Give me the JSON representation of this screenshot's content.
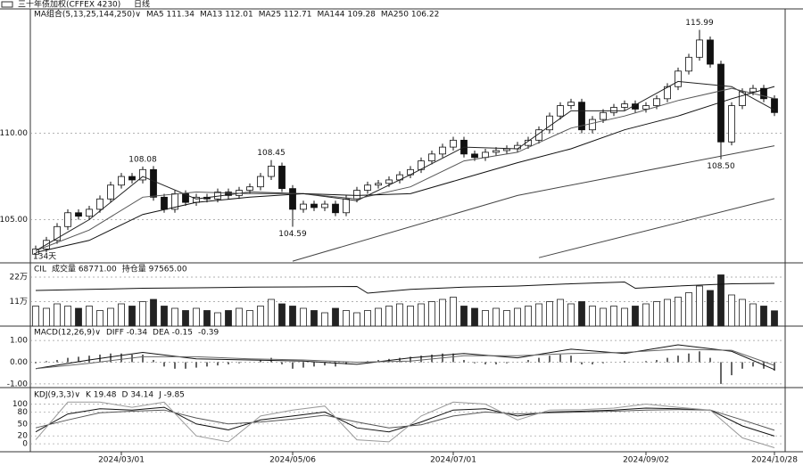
{
  "header": {
    "title": "三十年债加权(CFFEX 4230)",
    "period": "日线"
  },
  "chart_data": [
    {
      "type": "candlestick",
      "ylim": [
        102.5,
        117.2
      ],
      "xlim": [
        -0.5,
        69.5
      ],
      "yticks": [
        {
          "value": 105,
          "label": "105.00"
        },
        {
          "value": 110,
          "label": "110.00"
        }
      ],
      "legend": [
        "MA组合(5,13,25,144,250)∨",
        "MA5 111.34",
        "MA13 112.01",
        "MA25 112.71",
        "MA144 109.28",
        "MA250 106.22"
      ],
      "note": "134天",
      "open": [
        103.0,
        103.3,
        103.8,
        104.6,
        105.4,
        105.2,
        105.6,
        106.2,
        107.0,
        107.5,
        107.3,
        107.9,
        106.3,
        105.6,
        106.5,
        106.0,
        106.3,
        106.2,
        106.6,
        106.4,
        106.7,
        106.9,
        107.5,
        108.1,
        106.8,
        105.6,
        105.9,
        105.7,
        105.9,
        105.4,
        106.2,
        106.7,
        107.0,
        107.1,
        107.3,
        107.6,
        107.9,
        108.4,
        108.8,
        109.2,
        109.6,
        108.8,
        108.6,
        108.9,
        109.0,
        109.1,
        109.3,
        109.6,
        110.2,
        111.0,
        111.6,
        111.8,
        110.2,
        110.8,
        111.2,
        111.5,
        111.7,
        111.4,
        111.6,
        112.0,
        112.7,
        113.6,
        114.4,
        115.4,
        114.0,
        109.5,
        111.6,
        112.4,
        112.6,
        112.0
      ],
      "high": [
        103.5,
        104.0,
        104.8,
        105.6,
        105.6,
        105.8,
        106.4,
        107.2,
        107.7,
        107.7,
        108.08,
        108.1,
        106.5,
        106.7,
        106.7,
        106.5,
        106.5,
        106.8,
        106.8,
        106.9,
        107.1,
        107.7,
        108.45,
        108.3,
        107.0,
        106.1,
        106.1,
        106.1,
        106.1,
        106.4,
        106.9,
        107.2,
        107.3,
        107.5,
        107.8,
        108.1,
        108.6,
        109.0,
        109.4,
        109.8,
        109.8,
        109.0,
        109.1,
        109.2,
        109.3,
        109.5,
        109.8,
        110.4,
        111.2,
        111.8,
        112.0,
        112.0,
        111.0,
        111.4,
        111.7,
        111.9,
        111.9,
        111.8,
        112.2,
        112.9,
        113.8,
        114.6,
        115.99,
        115.6,
        114.2,
        111.8,
        112.6,
        112.8,
        112.8,
        112.2
      ],
      "low": [
        102.8,
        103.1,
        103.6,
        104.4,
        105.0,
        105.0,
        105.4,
        106.0,
        106.8,
        107.1,
        107.1,
        106.1,
        105.4,
        105.4,
        105.8,
        105.8,
        106.0,
        106.0,
        106.2,
        106.2,
        106.5,
        106.7,
        107.3,
        106.6,
        104.59,
        105.4,
        105.5,
        105.5,
        105.2,
        105.2,
        106.0,
        106.5,
        106.8,
        106.9,
        107.1,
        107.4,
        107.7,
        108.2,
        108.6,
        109.0,
        108.6,
        108.4,
        108.4,
        108.7,
        108.8,
        108.9,
        109.1,
        109.4,
        110.0,
        110.8,
        111.4,
        110.0,
        110.0,
        110.6,
        111.0,
        111.3,
        111.2,
        111.2,
        111.4,
        111.8,
        112.5,
        113.4,
        114.2,
        113.8,
        108.5,
        109.3,
        111.4,
        112.2,
        111.8,
        111.0
      ],
      "close": [
        103.3,
        103.8,
        104.6,
        105.4,
        105.2,
        105.6,
        106.2,
        107.0,
        107.5,
        107.3,
        107.9,
        106.3,
        105.6,
        106.5,
        106.0,
        106.3,
        106.2,
        106.6,
        106.4,
        106.7,
        106.9,
        107.5,
        108.1,
        106.8,
        105.6,
        105.9,
        105.7,
        105.9,
        105.4,
        106.2,
        106.7,
        107.0,
        107.1,
        107.3,
        107.6,
        107.9,
        108.4,
        108.8,
        109.2,
        109.6,
        108.8,
        108.6,
        108.9,
        109.0,
        109.1,
        109.3,
        109.6,
        110.2,
        111.0,
        111.6,
        111.8,
        110.2,
        110.8,
        111.2,
        111.5,
        111.7,
        111.4,
        111.6,
        112.0,
        112.7,
        113.6,
        114.4,
        115.4,
        114.0,
        109.5,
        111.6,
        112.4,
        112.6,
        112.0,
        111.2
      ],
      "series": [
        {
          "color": "#222222",
          "x": [
            0,
            5,
            10,
            15,
            20,
            25,
            30,
            35,
            40,
            45,
            50,
            55,
            60,
            65,
            69
          ],
          "values": [
            103.2,
            105.0,
            107.5,
            106.2,
            106.6,
            106.5,
            106.1,
            107.6,
            109.2,
            109.1,
            111.3,
            111.3,
            113.0,
            112.7,
            111.34
          ]
        },
        {
          "color": "#555555",
          "x": [
            0,
            5,
            10,
            15,
            20,
            25,
            30,
            35,
            40,
            45,
            50,
            55,
            60,
            65,
            69
          ],
          "values": [
            103.2,
            104.4,
            106.3,
            106.6,
            106.5,
            106.5,
            106.2,
            106.9,
            108.4,
            108.9,
            110.3,
            111.0,
            111.9,
            112.6,
            112.01
          ]
        },
        {
          "color": "#111111",
          "x": [
            0,
            5,
            10,
            15,
            20,
            25,
            30,
            35,
            40,
            45,
            50,
            55,
            60,
            65,
            69
          ],
          "values": [
            103.1,
            103.8,
            105.3,
            106.0,
            106.3,
            106.5,
            106.4,
            106.5,
            107.4,
            108.3,
            109.1,
            110.2,
            111.0,
            112.0,
            112.71
          ]
        },
        {
          "color": "#444444",
          "x": [
            24,
            45,
            69
          ],
          "values": [
            102.6,
            106.4,
            109.28
          ]
        },
        {
          "color": "#444444",
          "x": [
            47,
            69
          ],
          "values": [
            102.8,
            106.22
          ]
        }
      ],
      "annotations": [
        {
          "x": 10,
          "y": 108.08,
          "label": "108.08"
        },
        {
          "x": 22,
          "y": 108.45,
          "label": "108.45"
        },
        {
          "x": 24,
          "y": 104.59,
          "label": "104.59"
        },
        {
          "x": 62,
          "y": 115.99,
          "label": "115.99"
        },
        {
          "x": 64,
          "y": 108.5,
          "label": "108.50"
        }
      ]
    },
    {
      "type": "volume",
      "ylim": [
        0,
        28
      ],
      "yticks": [
        {
          "value": 11,
          "label": "11万"
        },
        {
          "value": 22,
          "label": "22万"
        }
      ],
      "legend": [
        "CIL",
        "成交量 68771.00",
        "持仓量 97565.00"
      ],
      "values": [
        9,
        8,
        10,
        9,
        8,
        9,
        7,
        8,
        10,
        9,
        11,
        12,
        9,
        8,
        7,
        8,
        7,
        6,
        7,
        8,
        7,
        9,
        12,
        10,
        9,
        8,
        7,
        6,
        8,
        7,
        6,
        7,
        8,
        9,
        10,
        9,
        10,
        11,
        12,
        13,
        9,
        8,
        7,
        8,
        7,
        8,
        9,
        10,
        11,
        12,
        10,
        11,
        9,
        8,
        9,
        8,
        9,
        10,
        11,
        12,
        13,
        15,
        18,
        16,
        23,
        14,
        12,
        10,
        9,
        6.88
      ],
      "series": [
        {
          "color": "#111111",
          "x": [
            0,
            5,
            10,
            15,
            20,
            25,
            30,
            31,
            35,
            40,
            45,
            50,
            55,
            56,
            60,
            65,
            69
          ],
          "values": [
            16.0,
            16.5,
            17.0,
            17.2,
            17.5,
            17.6,
            17.8,
            14.8,
            16.5,
            17.5,
            18.0,
            19.0,
            19.8,
            17.0,
            18.0,
            19.0,
            19.2
          ]
        }
      ]
    },
    {
      "type": "macd",
      "ylim": [
        -1.17,
        1.62
      ],
      "yticks": [
        {
          "value": 1,
          "label": "1.00"
        },
        {
          "value": 0,
          "label": "0.00"
        },
        {
          "value": -1,
          "label": "-1.00"
        }
      ],
      "legend": [
        "MACD(12,26,9)∨",
        "DIFF -0.34",
        "DEA -0.15",
        "-0.39"
      ],
      "values": [
        -0.05,
        0.05,
        0.1,
        0.2,
        0.25,
        0.3,
        0.35,
        0.4,
        0.4,
        0.35,
        0.35,
        0.1,
        -0.2,
        -0.3,
        -0.3,
        -0.25,
        -0.2,
        -0.15,
        -0.1,
        -0.05,
        0.0,
        0.1,
        0.2,
        -0.1,
        -0.3,
        -0.25,
        -0.2,
        -0.15,
        -0.2,
        -0.1,
        0.0,
        0.05,
        0.1,
        0.15,
        0.2,
        0.25,
        0.3,
        0.35,
        0.4,
        0.4,
        0.1,
        -0.05,
        -0.1,
        -0.1,
        -0.05,
        0.0,
        0.1,
        0.2,
        0.3,
        0.35,
        0.3,
        -0.1,
        -0.1,
        -0.05,
        0.0,
        0.05,
        0.0,
        0.05,
        0.1,
        0.2,
        0.3,
        0.4,
        0.5,
        0.2,
        -1.0,
        -0.6,
        -0.3,
        -0.2,
        -0.3,
        -0.39
      ],
      "series": [
        {
          "color": "#111111",
          "x": [
            0,
            5,
            10,
            15,
            20,
            25,
            30,
            35,
            40,
            45,
            50,
            55,
            60,
            65,
            69
          ],
          "values": [
            -0.3,
            0.1,
            0.45,
            0.15,
            0.1,
            0.05,
            -0.1,
            0.2,
            0.4,
            0.2,
            0.6,
            0.4,
            0.8,
            0.5,
            -0.34
          ]
        },
        {
          "color": "#666666",
          "x": [
            0,
            5,
            10,
            15,
            20,
            25,
            30,
            35,
            40,
            45,
            50,
            55,
            60,
            65,
            69
          ],
          "values": [
            -0.3,
            -0.05,
            0.25,
            0.25,
            0.15,
            0.1,
            0.0,
            0.05,
            0.3,
            0.3,
            0.4,
            0.45,
            0.6,
            0.55,
            -0.15
          ]
        }
      ]
    },
    {
      "type": "kdj",
      "ylim": [
        -20,
        137
      ],
      "yticks": [
        100,
        80,
        50,
        20,
        0
      ],
      "legend": [
        "KDJ(9,3,3)∨",
        "K 19.48",
        "D 34.14",
        "J -9.85"
      ],
      "xticks": [
        {
          "value": 8,
          "label": "2024/03/01"
        },
        {
          "value": 24,
          "label": "2024/05/06"
        },
        {
          "value": 39,
          "label": "2024/07/01"
        },
        {
          "value": 57,
          "label": "2024/09/02"
        },
        {
          "value": 69,
          "label": "2024/10/28"
        }
      ],
      "series": [
        {
          "color": "#111111",
          "x": [
            0,
            3,
            6,
            9,
            12,
            15,
            18,
            21,
            24,
            27,
            30,
            33,
            36,
            39,
            42,
            45,
            48,
            51,
            54,
            57,
            60,
            63,
            66,
            69
          ],
          "values": [
            30,
            75,
            88,
            85,
            92,
            50,
            35,
            60,
            70,
            80,
            40,
            30,
            55,
            85,
            88,
            70,
            80,
            82,
            85,
            90,
            88,
            85,
            45,
            19.48
          ]
        },
        {
          "color": "#555555",
          "x": [
            0,
            3,
            6,
            9,
            12,
            15,
            18,
            21,
            24,
            27,
            30,
            33,
            36,
            39,
            42,
            45,
            48,
            51,
            54,
            57,
            60,
            63,
            66,
            69
          ],
          "values": [
            40,
            60,
            78,
            82,
            85,
            65,
            50,
            55,
            62,
            72,
            55,
            40,
            48,
            70,
            80,
            75,
            78,
            80,
            82,
            85,
            86,
            85,
            60,
            34.14
          ]
        },
        {
          "color": "#999999",
          "x": [
            0,
            3,
            6,
            9,
            12,
            15,
            18,
            21,
            24,
            27,
            30,
            33,
            36,
            39,
            42,
            45,
            48,
            51,
            54,
            57,
            60,
            63,
            66,
            69
          ],
          "values": [
            10,
            105,
            105,
            92,
            105,
            20,
            5,
            70,
            85,
            95,
            10,
            5,
            70,
            105,
            100,
            60,
            85,
            86,
            90,
            100,
            92,
            85,
            15,
            -9.85
          ]
        }
      ]
    }
  ]
}
